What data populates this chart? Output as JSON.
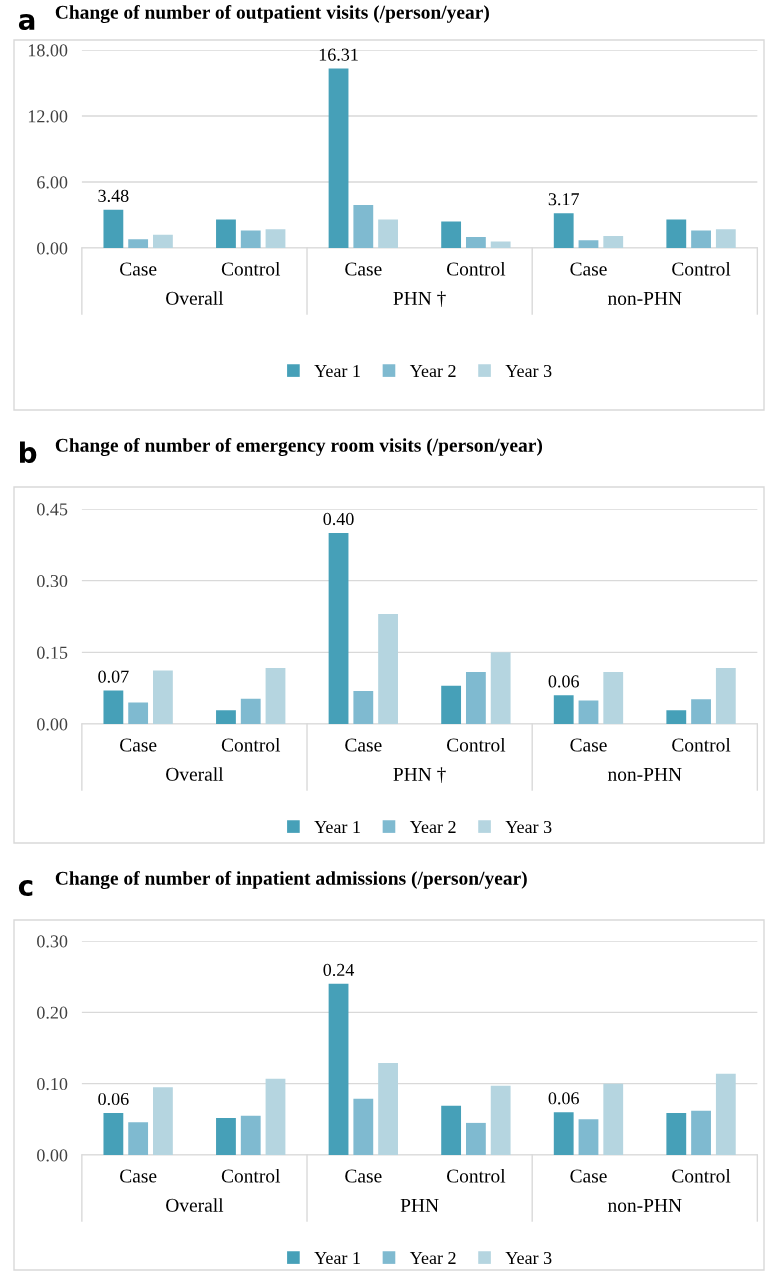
{
  "chart_data": [
    {
      "type": "bar",
      "title": "Change of number of outpatient visits (/person/year)",
      "annotations": [
        "a",
        "Overall",
        "PHN †",
        "non-PHN"
      ],
      "categories": [
        "Case",
        "Control",
        "Case",
        "Control",
        "Case",
        "Control"
      ],
      "series": [
        {
          "name": "Year 1",
          "color": "#46a0b8",
          "values": [
            3.48,
            2.6,
            16.31,
            2.4,
            3.17,
            2.6
          ],
          "value_labels": [
            "3.48",
            null,
            "16.31",
            null,
            "3.17",
            null
          ]
        },
        {
          "name": "Year 2",
          "color": "#7fbad0",
          "values": [
            0.8,
            1.6,
            3.9,
            1.0,
            0.7,
            1.6
          ]
        },
        {
          "name": "Year 3",
          "color": "#b5d5e0",
          "values": [
            1.2,
            1.7,
            2.6,
            0.6,
            1.1,
            1.7
          ]
        }
      ],
      "ylim": [
        0,
        18
      ],
      "yticks": [
        {
          "value": 0,
          "label": "0.00"
        },
        {
          "value": 6,
          "label": "6.00"
        },
        {
          "value": 12,
          "label": "12.00"
        },
        {
          "value": 18,
          "label": "18.00"
        }
      ],
      "grid": "y",
      "legend": "bottom"
    },
    {
      "type": "bar",
      "title": "Change of number of emergency room visits (/person/year)",
      "annotations": [
        "b",
        "Overall",
        "PHN †",
        "non-PHN"
      ],
      "categories": [
        "Case",
        "Control",
        "Case",
        "Control",
        "Case",
        "Control"
      ],
      "series": [
        {
          "name": "Year 1",
          "color": "#46a0b8",
          "values": [
            0.07,
            0.029,
            0.4,
            0.08,
            0.06,
            0.029
          ],
          "value_labels": [
            "0.07",
            null,
            "0.40",
            null,
            "0.06",
            null
          ]
        },
        {
          "name": "Year 2",
          "color": "#7fbad0",
          "values": [
            0.045,
            0.053,
            0.069,
            0.109,
            0.049,
            0.052
          ]
        },
        {
          "name": "Year 3",
          "color": "#b5d5e0",
          "values": [
            0.112,
            0.117,
            0.23,
            0.15,
            0.109,
            0.117
          ]
        }
      ],
      "ylim": [
        0,
        0.45
      ],
      "yticks": [
        {
          "value": 0,
          "label": "0.00"
        },
        {
          "value": 0.15,
          "label": "0.15"
        },
        {
          "value": 0.3,
          "label": "0.30"
        },
        {
          "value": 0.45,
          "label": "0.45"
        }
      ],
      "grid": "y",
      "legend": "bottom"
    },
    {
      "type": "bar",
      "title": "Change of number of inpatient admissions (/person/year)",
      "annotations": [
        "c",
        "Overall",
        "PHN",
        "non-PHN"
      ],
      "categories": [
        "Case",
        "Control",
        "Case",
        "Control",
        "Case",
        "Control"
      ],
      "series": [
        {
          "name": "Year 1",
          "color": "#46a0b8",
          "values": [
            0.059,
            0.052,
            0.24,
            0.069,
            0.06,
            0.059
          ],
          "value_labels": [
            "0.06",
            null,
            "0.24",
            null,
            "0.06",
            null
          ]
        },
        {
          "name": "Year 2",
          "color": "#7fbad0",
          "values": [
            0.046,
            0.055,
            0.079,
            0.045,
            0.05,
            0.062
          ]
        },
        {
          "name": "Year 3",
          "color": "#b5d5e0",
          "values": [
            0.095,
            0.107,
            0.129,
            0.097,
            0.1,
            0.114
          ]
        }
      ],
      "ylim": [
        0,
        0.3
      ],
      "yticks": [
        {
          "value": 0,
          "label": "0.00"
        },
        {
          "value": 0.1,
          "label": "0.10"
        },
        {
          "value": 0.2,
          "label": "0.20"
        },
        {
          "value": 0.3,
          "label": "0.30"
        }
      ],
      "grid": "y",
      "legend": "bottom"
    }
  ]
}
